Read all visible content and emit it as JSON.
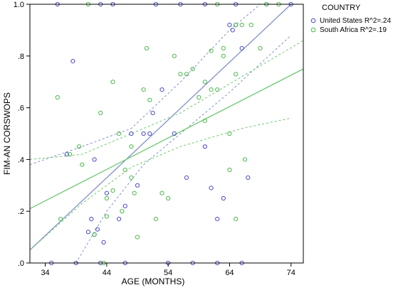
{
  "chart_data": {
    "type": "scatter",
    "title": "",
    "xlabel": "AGE (MONTHS)",
    "ylabel": "FIM-AN CORSWOPS",
    "xlim": [
      31.5,
      76
    ],
    "ylim": [
      0,
      1.0
    ],
    "xticks": [
      34,
      44,
      54,
      64,
      74
    ],
    "xtick_labels": [
      "34",
      "44",
      "54",
      "64",
      "74"
    ],
    "yticks": [
      0,
      0.2,
      0.4,
      0.6,
      0.8,
      1.0
    ],
    "ytick_labels": [
      ".0",
      ".2",
      ".4",
      ".6",
      ".8",
      "1.0"
    ],
    "grid": false,
    "legend": {
      "title": "COUNTRY",
      "placement": "right",
      "entries": [
        "United States R^2=.24",
        "South Africa R^2=.19"
      ]
    },
    "series": [
      {
        "name": "United States",
        "color": "#4b4bc8",
        "fit_color": "#8090c8",
        "fit": {
          "x0": 31.5,
          "y0": 0.05,
          "x1": 74.0,
          "y1": 1.0
        },
        "ci_upper": [
          [
            31.5,
            0.38
          ],
          [
            40,
            0.45
          ],
          [
            48,
            0.52
          ],
          [
            56,
            0.7
          ],
          [
            64,
            0.9
          ],
          [
            69,
            1.0
          ]
        ],
        "ci_lower": [
          [
            39,
            0.0
          ],
          [
            44,
            0.2
          ],
          [
            50,
            0.38
          ],
          [
            56,
            0.5
          ],
          [
            64,
            0.66
          ],
          [
            74,
            0.88
          ]
        ],
        "points": [
          [
            35,
            0.0
          ],
          [
            36,
            1.0
          ],
          [
            37.5,
            0.42
          ],
          [
            38.5,
            0.78
          ],
          [
            39,
            0.0
          ],
          [
            41,
            0.12
          ],
          [
            41.5,
            0.17
          ],
          [
            42,
            0.4
          ],
          [
            42,
            0.11
          ],
          [
            42.5,
            0.13
          ],
          [
            43,
            0.0
          ],
          [
            43,
            1.0
          ],
          [
            43.5,
            0.08
          ],
          [
            44,
            0.27
          ],
          [
            45,
            1.0
          ],
          [
            46,
            0.17
          ],
          [
            47,
            0.0
          ],
          [
            47,
            0.22
          ],
          [
            48,
            0.5
          ],
          [
            49,
            0.3
          ],
          [
            50,
            0.5
          ],
          [
            51,
            0.5
          ],
          [
            51.5,
            0.58
          ],
          [
            52,
            1.0
          ],
          [
            53,
            0.67
          ],
          [
            54,
            0.0
          ],
          [
            55,
            0.5
          ],
          [
            56,
            1.0
          ],
          [
            57,
            0.33
          ],
          [
            58,
            0.0
          ],
          [
            60,
            0.45
          ],
          [
            60,
            1.0
          ],
          [
            61,
            0.29
          ],
          [
            62,
            0.17
          ],
          [
            62,
            0.0
          ],
          [
            63,
            0.25
          ],
          [
            64,
            0.92
          ],
          [
            64.5,
            0.9
          ],
          [
            65,
            0.92
          ],
          [
            65,
            1.0
          ],
          [
            66,
            0.83
          ],
          [
            66,
            0.0
          ],
          [
            67,
            0.33
          ],
          [
            70,
            1.0
          ],
          [
            74,
            1.0
          ]
        ]
      },
      {
        "name": "South Africa",
        "color": "#4cb84c",
        "fit_color": "#6cc86c",
        "fit": {
          "x0": 31.5,
          "y0": 0.21,
          "x1": 76.0,
          "y1": 0.75
        },
        "ci_upper": [
          [
            31.5,
            0.4
          ],
          [
            40,
            0.42
          ],
          [
            48,
            0.5
          ],
          [
            56,
            0.58
          ],
          [
            66,
            0.72
          ],
          [
            76,
            0.86
          ]
        ],
        "ci_lower": [
          [
            31.5,
            0.05
          ],
          [
            40,
            0.23
          ],
          [
            48,
            0.37
          ],
          [
            56,
            0.45
          ],
          [
            66,
            0.52
          ],
          [
            74,
            0.56
          ]
        ],
        "points": [
          [
            36,
            0.64
          ],
          [
            36.5,
            0.17
          ],
          [
            38,
            0.42
          ],
          [
            39.5,
            0.45
          ],
          [
            40,
            0.38
          ],
          [
            41,
            1.0
          ],
          [
            42,
            0.11
          ],
          [
            43,
            0.58
          ],
          [
            43.5,
            0.0
          ],
          [
            44,
            0.25
          ],
          [
            44,
            0.18
          ],
          [
            45,
            0.7
          ],
          [
            45,
            0.28
          ],
          [
            46,
            0.5
          ],
          [
            46.5,
            0.2
          ],
          [
            47,
            0.36
          ],
          [
            48,
            0.45
          ],
          [
            48,
            0.33
          ],
          [
            48.5,
            0.27
          ],
          [
            49,
            0.1
          ],
          [
            50,
            0.67
          ],
          [
            50.5,
            0.83
          ],
          [
            51,
            0.63
          ],
          [
            52,
            0.17
          ],
          [
            53,
            0.27
          ],
          [
            54,
            0.25
          ],
          [
            55,
            0.8
          ],
          [
            56,
            0.73
          ],
          [
            57,
            0.73
          ],
          [
            58,
            0.75
          ],
          [
            59,
            0.64
          ],
          [
            60,
            0.7
          ],
          [
            61,
            0.67
          ],
          [
            61,
            0.82
          ],
          [
            62,
            0.67
          ],
          [
            62,
            1.0
          ],
          [
            63,
            0.83
          ],
          [
            63,
            0.8
          ],
          [
            64,
            0.5
          ],
          [
            64,
            0.36
          ],
          [
            65,
            0.17
          ],
          [
            65,
            0.73
          ],
          [
            65,
            0.92
          ],
          [
            66,
            0.92
          ],
          [
            66.5,
            0.4
          ],
          [
            67.5,
            0.92
          ],
          [
            69,
            0.83
          ],
          [
            70,
            1.0
          ],
          [
            72,
            1.0
          ],
          [
            60,
            0.55
          ]
        ]
      }
    ]
  }
}
